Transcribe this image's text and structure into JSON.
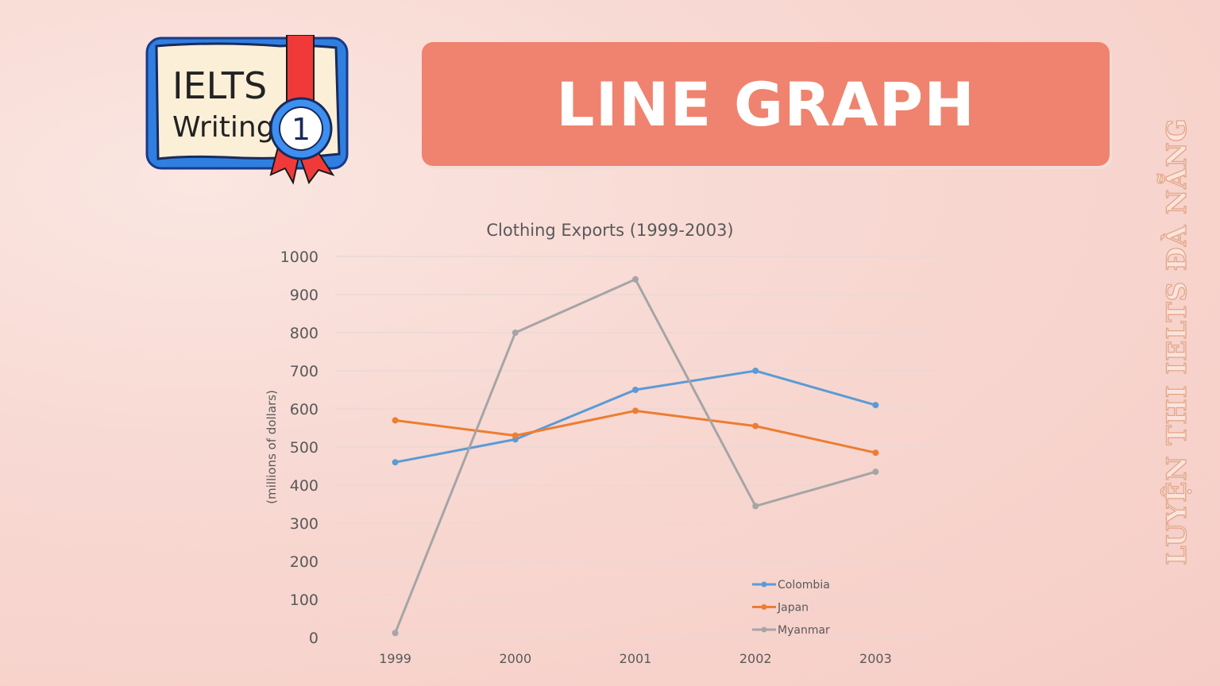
{
  "logo": {
    "line1": "IELTS",
    "line2": "Writing",
    "badge": "1"
  },
  "banner": {
    "title": "LINE GRAPH",
    "color": "#ef836f"
  },
  "watermark": "LUYỆN THI IELTS ĐÀ NẴNG",
  "chart_data": {
    "type": "line",
    "title": "Clothing Exports (1999-2003)",
    "xlabel": "",
    "ylabel": "(millions of dollars)",
    "categories": [
      "1999",
      "2000",
      "2001",
      "2002",
      "2003"
    ],
    "ylim": [
      0,
      1000
    ],
    "yticks": [
      0,
      100,
      200,
      300,
      400,
      500,
      600,
      700,
      800,
      900,
      1000
    ],
    "grid": true,
    "legend": "bottom-right",
    "series": [
      {
        "name": "Colombia",
        "color": "#5b9bd5",
        "values": [
          460,
          520,
          650,
          700,
          610
        ]
      },
      {
        "name": "Japan",
        "color": "#ed7d31",
        "values": [
          570,
          530,
          595,
          555,
          485
        ]
      },
      {
        "name": "Myanmar",
        "color": "#a5a5a5",
        "values": [
          12,
          800,
          940,
          345,
          435
        ]
      }
    ]
  }
}
